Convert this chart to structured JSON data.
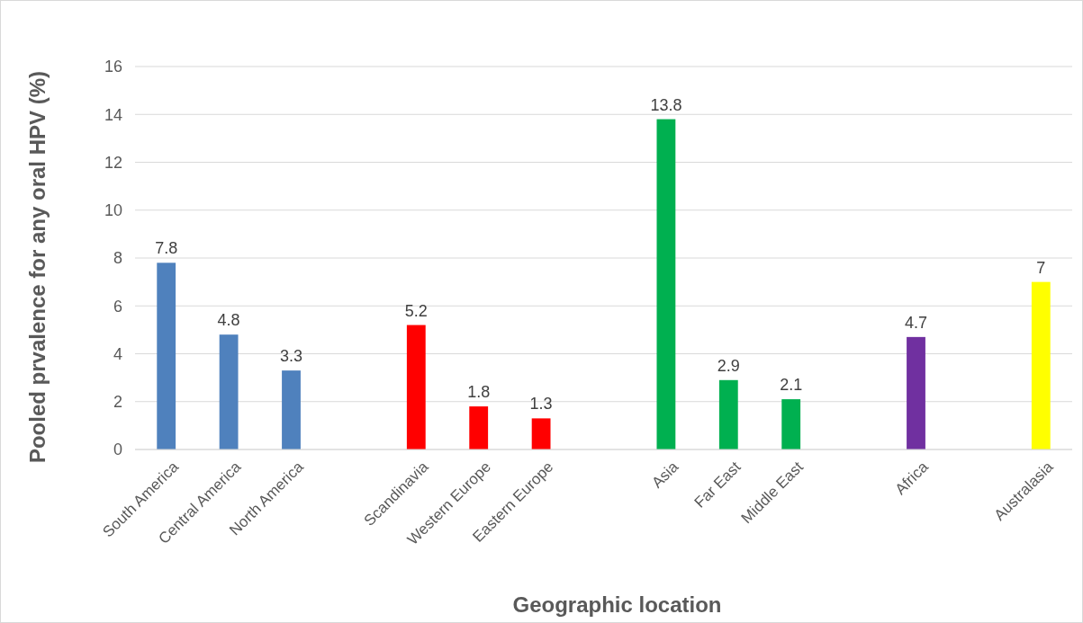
{
  "chart_data": {
    "type": "bar",
    "xlabel": "Geographic location",
    "ylabel": "Pooled prvalence for any oral HPV (%)",
    "categories": [
      "South America",
      "Central America",
      "North America",
      null,
      "Scandinavia",
      "Western Europe",
      "Eastern Europe",
      null,
      "Asia",
      "Far East",
      "Middle East",
      null,
      "Africa",
      null,
      "Australasia"
    ],
    "values": [
      7.8,
      4.8,
      3.3,
      null,
      5.2,
      1.8,
      1.3,
      null,
      13.8,
      2.9,
      2.1,
      null,
      4.7,
      null,
      7
    ],
    "colors": [
      "#4f81bd",
      "#4f81bd",
      "#4f81bd",
      null,
      "#ff0000",
      "#ff0000",
      "#ff0000",
      null,
      "#00b050",
      "#00b050",
      "#00b050",
      null,
      "#7030a0",
      null,
      "#ffff00"
    ],
    "ylim": [
      0,
      16
    ],
    "yticks": [
      0,
      2,
      4,
      6,
      8,
      10,
      12,
      14,
      16
    ],
    "grid": "y",
    "data_labels": true
  }
}
